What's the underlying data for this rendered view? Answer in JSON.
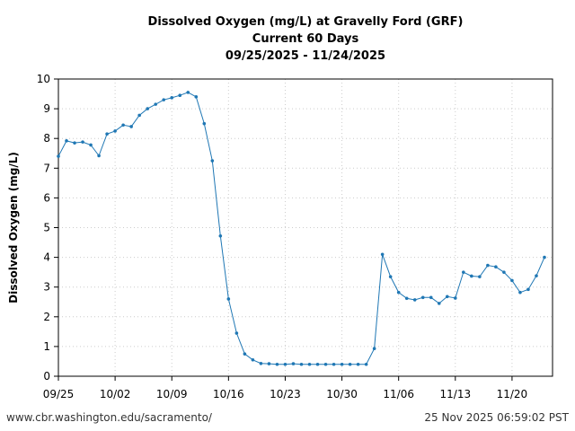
{
  "chart_data": {
    "type": "line",
    "title": [
      "Dissolved Oxygen (mg/L) at Gravelly Ford (GRF)",
      "Current 60 Days",
      "09/25/2025 - 11/24/2025"
    ],
    "xlabel": "",
    "ylabel": "Dissolved Oxygen (mg/L)",
    "ylim": [
      0,
      10
    ],
    "xlim": [
      "2025-09-25",
      "2025-11-25"
    ],
    "yticks": [
      0,
      1,
      2,
      3,
      4,
      5,
      6,
      7,
      8,
      9,
      10
    ],
    "xticks": [
      {
        "date": "2025-09-25",
        "label": "09/25"
      },
      {
        "date": "2025-10-02",
        "label": "10/02"
      },
      {
        "date": "2025-10-09",
        "label": "10/09"
      },
      {
        "date": "2025-10-16",
        "label": "10/16"
      },
      {
        "date": "2025-10-23",
        "label": "10/23"
      },
      {
        "date": "2025-10-30",
        "label": "10/30"
      },
      {
        "date": "2025-11-06",
        "label": "11/06"
      },
      {
        "date": "2025-11-13",
        "label": "11/13"
      },
      {
        "date": "2025-11-20",
        "label": "11/20"
      }
    ],
    "grid": true,
    "color": "#1f77b4",
    "start_date": "2025-09-25",
    "values": [
      7.4,
      7.92,
      7.85,
      7.88,
      7.78,
      7.42,
      8.15,
      8.25,
      8.45,
      8.4,
      8.78,
      9.0,
      9.15,
      9.3,
      9.37,
      9.45,
      9.55,
      9.4,
      8.5,
      7.25,
      4.72,
      2.6,
      1.45,
      0.75,
      0.55,
      0.43,
      0.42,
      0.4,
      0.4,
      0.42,
      0.4,
      0.4,
      0.4,
      0.4,
      0.4,
      0.4,
      0.4,
      0.4,
      0.4,
      0.93,
      4.1,
      3.35,
      2.82,
      2.62,
      2.57,
      2.65,
      2.65,
      2.45,
      2.68,
      2.63,
      3.5,
      3.37,
      3.35,
      3.73,
      3.68,
      3.5,
      3.22,
      2.82,
      2.92,
      3.38,
      4.0
    ]
  },
  "footer": {
    "url": "www.cbr.washington.edu/sacramento/",
    "timestamp": "25 Nov 2025 06:59:02 PST"
  }
}
